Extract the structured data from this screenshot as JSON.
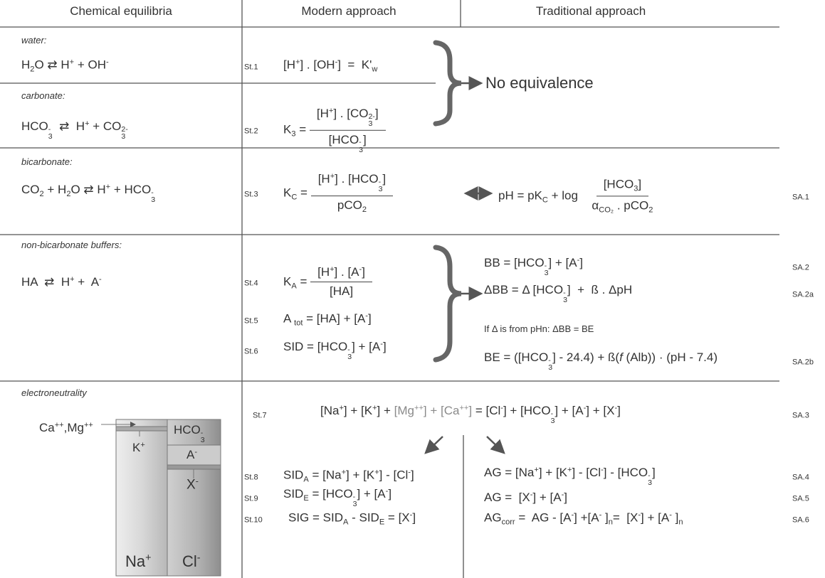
{
  "headers": [
    "Chemical equilibria",
    "Modern approach",
    "Traditional approach"
  ],
  "sections": [
    {
      "label": "water:",
      "reaction": [
        "H",
        {
          "sub": "2"
        },
        "O ⇄ H",
        {
          "sup": "+"
        },
        " + OH",
        {
          "sup": "-"
        }
      ]
    },
    {
      "label": "carbonate:",
      "reaction": [
        "HCO",
        {
          "sub": "3",
          "sup": "-"
        },
        "  ⇄  H",
        {
          "sup": "+"
        },
        " + CO",
        {
          "sub": "3",
          "sup": "2-"
        }
      ]
    },
    {
      "label": "bicarbonate:",
      "reaction": [
        "CO",
        {
          "sub": "2"
        },
        " + H",
        {
          "sub": "2"
        },
        "O ⇄ H",
        {
          "sup": "+"
        },
        " + HCO",
        {
          "sub": "3",
          "sup": "-"
        }
      ]
    },
    {
      "label": "non-bicarbonate buffers:",
      "reaction": [
        "HA  ⇄  H",
        {
          "sup": "+"
        },
        " +  A",
        {
          "sup": "-"
        }
      ]
    },
    {
      "label": "electroneutrality"
    }
  ],
  "modern": [
    {
      "id": "St.1",
      "formula": [
        "[H",
        {
          "sup": "+"
        },
        "] . [OH",
        {
          "sup": "-"
        },
        "]  =  K'",
        {
          "sub": "w"
        }
      ]
    },
    {
      "id": "St.2",
      "formula": [
        "K",
        {
          "sub": "3"
        },
        " = ",
        {
          "num": [
            "[H",
            {
              "sup": "+"
            },
            "] . [CO",
            {
              "sub": "3",
              "sup": "2-"
            },
            "]"
          ],
          "den": [
            "[HCO",
            {
              "sub": "3",
              "sup": "-"
            },
            "]"
          ]
        }
      ]
    },
    {
      "id": "St.3",
      "formula": [
        "K",
        {
          "sub": "C"
        },
        " = ",
        {
          "num": [
            "[H",
            {
              "sup": "+"
            },
            "] . [HCO",
            {
              "sub": "3",
              "sup": "-"
            },
            "]"
          ],
          "den": [
            "pCO",
            {
              "sub": "2"
            }
          ]
        }
      ]
    },
    {
      "id": "St.4",
      "formula": [
        "K",
        {
          "sub": "A"
        },
        " = ",
        {
          "num": [
            "[H",
            {
              "sup": "+"
            },
            "] . [A",
            {
              "sup": "-"
            },
            "]"
          ],
          "den": [
            "[HA]"
          ]
        }
      ]
    },
    {
      "id": "St.5",
      "formula": [
        "A ",
        {
          "sub": "tot"
        },
        " = [HA] + [A",
        {
          "sup": "-"
        },
        "]"
      ]
    },
    {
      "id": "St.6",
      "formula": [
        "SID = [HCO",
        {
          "sub": "3",
          "sup": "-"
        },
        "] + [A",
        {
          "sup": "-"
        },
        "]"
      ]
    },
    {
      "id": "St.8",
      "formula": [
        "SID",
        {
          "sub": "A"
        },
        " = [Na",
        {
          "sup": "+"
        },
        "] + [K",
        {
          "sup": "+"
        },
        "] - [Cl",
        {
          "sup": "-"
        },
        "]"
      ]
    },
    {
      "id": "St.9",
      "formula": [
        "SID",
        {
          "sub": "E"
        },
        " = [HCO",
        {
          "sub": "3",
          "sup": "-"
        },
        "] + [A",
        {
          "sup": "-"
        },
        "]"
      ]
    },
    {
      "id": "St.10",
      "formula": [
        "SIG = SID",
        {
          "sub": "A"
        },
        " - SID",
        {
          "sub": "E"
        },
        " = [X",
        {
          "sup": "-"
        },
        "]"
      ]
    }
  ],
  "no_equivalence": "No equivalence",
  "traditional": [
    {
      "id": "SA.1",
      "formula": [
        "pH = pK",
        {
          "sub": "C"
        },
        " + log  ",
        {
          "num": [
            "[HCO",
            {
              "sub": "3"
            },
            "]"
          ],
          "den": [
            "α",
            {
              "sub": "CO₂"
            },
            " . pCO",
            {
              "sub": "2"
            }
          ]
        }
      ]
    },
    {
      "id": "SA.2",
      "formula": [
        "BB = [HCO",
        {
          "sub": "3",
          "sup": "-"
        },
        "] + [A",
        {
          "sup": "-"
        },
        "]"
      ]
    },
    {
      "id": "SA.2a",
      "formula": [
        "ΔBB = Δ [HCO",
        {
          "sub": "3",
          "sup": "-"
        },
        "]  +  ß . ΔpH"
      ]
    },
    {
      "id": "SA.2b",
      "formula": [
        "BE = ([HCO",
        {
          "sub": "3",
          "sup": "-"
        },
        "] - 24.4) + ß(",
        {
          "italic": "f"
        },
        " (Alb)) · (pH - 7.4)"
      ]
    },
    {
      "id": "SA.4",
      "formula": [
        "AG = [Na",
        {
          "sup": "+"
        },
        "] + [K",
        {
          "sup": "+"
        },
        "] - [Cl",
        {
          "sup": "-"
        },
        "] - [HCO",
        {
          "sub": "3",
          "sup": "-"
        },
        "]"
      ]
    },
    {
      "id": "SA.5",
      "formula": [
        "AG =  [X",
        {
          "sup": "-"
        },
        "] + [A",
        {
          "sup": "-"
        },
        "]"
      ]
    },
    {
      "id": "SA.6",
      "formula": [
        "AG",
        {
          "sub": "corr"
        },
        " =  AG - [A",
        {
          "sup": "-"
        },
        "] +[A",
        {
          "sup": "-"
        },
        " ]",
        {
          "sub": "n"
        },
        "=  [X",
        {
          "sup": "-"
        },
        "] + [A",
        {
          "sup": "-"
        },
        " ]",
        {
          "sub": "n"
        }
      ]
    }
  ],
  "note": "If Δ is from pHn: ΔBB = BE",
  "electroneutrality_equation": {
    "st": "St.7",
    "sa": "SA.3",
    "formula": [
      "[Na",
      {
        "sup": "+"
      },
      "] + [K",
      {
        "sup": "+"
      },
      "] + ",
      {
        "muted": [
          "[Mg",
          {
            "sup": "++"
          },
          "] + [Ca",
          {
            "sup": "++"
          },
          "]"
        ]
      },
      " = [Cl",
      {
        "sup": "-"
      },
      "] + [HCO",
      {
        "sub": "3",
        "sup": "-"
      },
      "] + [A",
      {
        "sup": "-"
      },
      "] + [X",
      {
        "sup": "-"
      },
      "]"
    ]
  },
  "gamblegram": {
    "cations_minor": [
      "Ca",
      {
        "sup": "++"
      },
      ",Mg",
      {
        "sup": "++"
      }
    ],
    "potassium": [
      "K",
      {
        "sup": "+"
      }
    ],
    "bicarbonate": [
      "HCO",
      {
        "sub": "3",
        "sup": "-"
      }
    ],
    "weak_acids": [
      "A",
      {
        "sup": "-"
      }
    ],
    "unmeasured": [
      "X",
      {
        "sup": "-"
      }
    ],
    "sodium": [
      "Na",
      {
        "sup": "+"
      }
    ],
    "chloride": [
      "Cl",
      {
        "sup": "-"
      }
    ]
  }
}
